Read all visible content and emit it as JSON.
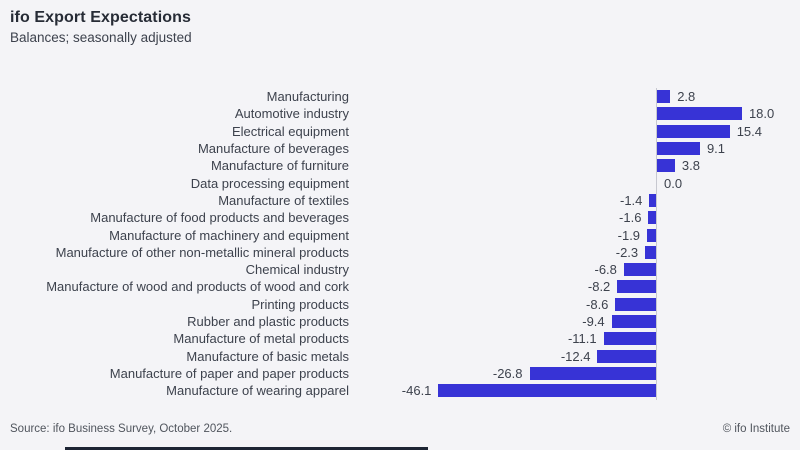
{
  "header": {
    "title": "ifo Export Expectations",
    "subtitle": "Balances; seasonally adjusted"
  },
  "footer": {
    "source": "Source: ifo Business Survey, October 2025.",
    "credit": "© ifo Institute"
  },
  "colors": {
    "bar": "#3733d6",
    "background": "#f4f4f7",
    "axis_line": "#c7c8d0",
    "text": "#3d424d"
  },
  "chart_data": {
    "type": "bar",
    "orientation": "horizontal",
    "title": "ifo Export Expectations",
    "subtitle": "Balances; seasonally adjusted",
    "xlabel": "",
    "ylabel": "",
    "xlim": [
      -50,
      20
    ],
    "grid": false,
    "legend": null,
    "categories": [
      "Manufacturing",
      "Automotive industry",
      "Electrical equipment",
      "Manufacture of beverages",
      "Manufacture of furniture",
      "Data processing equipment",
      "Manufacture of textiles",
      "Manufacture of food products and beverages",
      "Manufacture of machinery and equipment",
      "Manufacture of other non-metallic mineral products",
      "Chemical industry",
      "Manufacture of wood and products of wood and cork",
      "Printing products",
      "Rubber and plastic products",
      "Manufacture of metal products",
      "Manufacture of basic metals",
      "Manufacture of paper and paper products",
      "Manufacture of wearing apparel"
    ],
    "values": [
      2.8,
      18.0,
      15.4,
      9.1,
      3.8,
      0.0,
      -1.4,
      -1.6,
      -1.9,
      -2.3,
      -6.8,
      -8.2,
      -8.6,
      -9.4,
      -11.1,
      -12.4,
      -26.8,
      -46.1
    ],
    "value_labels": [
      "2.8",
      "18.0",
      "15.4",
      "9.1",
      "3.8",
      "0.0",
      "-1.4",
      "-1.6",
      "-1.9",
      "-2.3",
      "-6.8",
      "-8.2",
      "-8.6",
      "-9.4",
      "-11.1",
      "-12.4",
      "-26.8",
      "-46.1"
    ]
  }
}
